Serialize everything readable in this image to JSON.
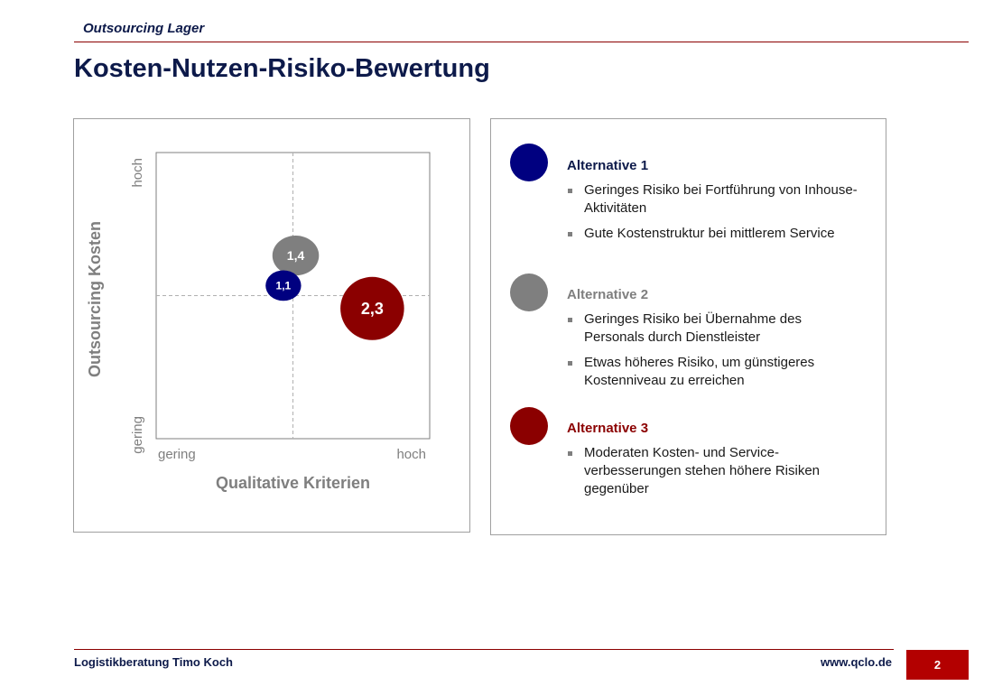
{
  "header": {
    "subtitle": "Outsourcing Lager",
    "title": "Kosten-Nutzen-Risiko-Bewertung"
  },
  "chart_data": {
    "type": "scatter",
    "title": "",
    "xlabel": "Qualitative Kriterien",
    "ylabel": "Outsourcing Kosten",
    "x_tick_low": "gering",
    "x_tick_high": "hoch",
    "y_tick_low": "gering",
    "y_tick_high": "hoch",
    "xlim": [
      0,
      1
    ],
    "ylim": [
      0,
      1
    ],
    "grid": "center crosshair",
    "points": [
      {
        "label": "1,4",
        "x": 0.51,
        "y": 0.64,
        "size": 0.17,
        "color": "#7f7f7f"
      },
      {
        "label": "1,1",
        "x": 0.465,
        "y": 0.535,
        "size": 0.13,
        "color": "#000080"
      },
      {
        "label": "2,3",
        "x": 0.79,
        "y": 0.455,
        "size": 0.24,
        "color": "#8b0000"
      }
    ]
  },
  "alternatives": [
    {
      "title": "Alternative 1",
      "color": "#000080",
      "title_color": "#0d1a4a",
      "bullets": [
        "Geringes Risiko bei Fortführung von Inhouse-Aktivitäten",
        "Gute Kostenstruktur bei mittlerem Service"
      ]
    },
    {
      "title": "Alternative 2",
      "color": "#7f7f7f",
      "title_color": "#7f7f7f",
      "bullets": [
        "Geringes Risiko bei Übernahme des Personals durch Dienstleister",
        "Etwas höheres Risiko, um günstigeres Kostenniveau zu erreichen"
      ]
    },
    {
      "title": "Alternative 3",
      "color": "#8b0000",
      "title_color": "#8b0000",
      "bullets": [
        "Moderaten Kosten- und Service-verbesserungen stehen höhere Risiken gegenüber"
      ]
    }
  ],
  "footer": {
    "left": "Logistikberatung Timo Koch",
    "right": "www.qclo.de",
    "page": "2"
  }
}
